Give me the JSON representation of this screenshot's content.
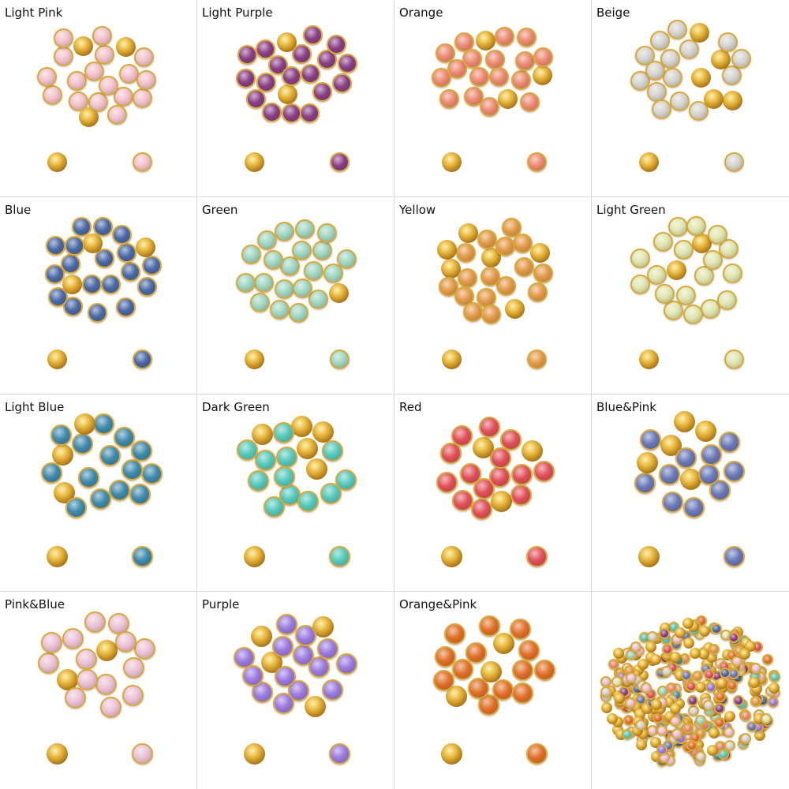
{
  "gold_color": "#d9a93a",
  "variants": [
    {
      "label": "Light Pink",
      "color": "#f2c2cc"
    },
    {
      "label": "Light Purple",
      "color": "#8a3f86"
    },
    {
      "label": "Orange",
      "color": "#ec8a72"
    },
    {
      "label": "Beige",
      "color": "#d6d4d0"
    },
    {
      "label": "Blue",
      "color": "#4a69a8"
    },
    {
      "label": "Green",
      "color": "#9fd6c2"
    },
    {
      "label": "Yellow",
      "color": "#e39a4a"
    },
    {
      "label": "Light Green",
      "color": "#dfe6b0"
    },
    {
      "label": "Light Blue",
      "color": "#3f8aac"
    },
    {
      "label": "Dark Green",
      "color": "#56c9bc"
    },
    {
      "label": "Red",
      "color": "#e0505a"
    },
    {
      "label": "Blue&Pink",
      "color": "#6a78b8"
    },
    {
      "label": "Pink&Blue",
      "color": "#ecc2d6"
    },
    {
      "label": "Purple",
      "color": "#9a7ae0"
    },
    {
      "label": "Orange&Pink",
      "color": "#e0702a"
    },
    {
      "label": "",
      "color": "mixed",
      "mixed": true
    }
  ]
}
